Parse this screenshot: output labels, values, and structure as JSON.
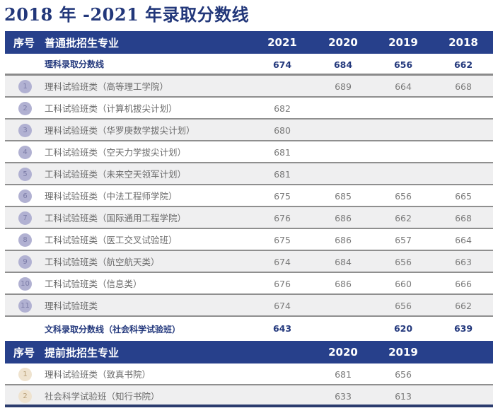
{
  "title": "2018 年 -2021 年录取分数线",
  "colors": {
    "header_bg": "#27408b",
    "title": "#22377a",
    "summary_text": "#24397d",
    "badge_purple": "#b1b1d2",
    "badge_gold": "#efe3cf"
  },
  "regular": {
    "header": {
      "seq": "序号",
      "name": "普通批招生专业",
      "years": [
        "2021",
        "2020",
        "2019",
        "2018"
      ]
    },
    "science_line": {
      "label": "理科录取分数线",
      "scores": [
        "674",
        "684",
        "656",
        "662"
      ]
    },
    "rows": [
      {
        "no": "1",
        "name": "理科试验班类（高等理工学院）",
        "scores": [
          "",
          "689",
          "664",
          "668"
        ]
      },
      {
        "no": "2",
        "name": "工科试验班类（计算机拔尖计划）",
        "scores": [
          "682",
          "",
          "",
          ""
        ]
      },
      {
        "no": "3",
        "name": "理科试验班类（华罗庚数学拔尖计划）",
        "scores": [
          "680",
          "",
          "",
          ""
        ]
      },
      {
        "no": "4",
        "name": "工科试验班类（空天力学拔尖计划）",
        "scores": [
          "681",
          "",
          "",
          ""
        ]
      },
      {
        "no": "5",
        "name": "工科试验班类（未来空天领军计划）",
        "scores": [
          "681",
          "",
          "",
          ""
        ]
      },
      {
        "no": "6",
        "name": "理科试验班类（中法工程师学院）",
        "scores": [
          "675",
          "685",
          "656",
          "665"
        ]
      },
      {
        "no": "7",
        "name": "工科试验班类（国际通用工程学院）",
        "scores": [
          "676",
          "686",
          "662",
          "668"
        ]
      },
      {
        "no": "8",
        "name": "工科试验班类（医工交叉试验班）",
        "scores": [
          "675",
          "686",
          "657",
          "664"
        ]
      },
      {
        "no": "9",
        "name": "工科试验班类（航空航天类）",
        "scores": [
          "674",
          "684",
          "656",
          "663"
        ]
      },
      {
        "no": "10",
        "name": "工科试验班类（信息类）",
        "scores": [
          "676",
          "686",
          "660",
          "666"
        ]
      },
      {
        "no": "11",
        "name": "理科试验班类",
        "scores": [
          "674",
          "",
          "656",
          "662"
        ]
      }
    ],
    "arts_line": {
      "label": "文科录取分数线（社会科学试验班）",
      "scores": [
        "643",
        "",
        "620",
        "639"
      ]
    }
  },
  "early": {
    "header": {
      "seq": "序号",
      "name": "提前批招生专业",
      "years": [
        "2020",
        "2019"
      ]
    },
    "rows": [
      {
        "no": "1",
        "name": "理科试验班类（致真书院）",
        "scores": [
          "681",
          "656"
        ]
      },
      {
        "no": "2",
        "name": "社会科学试验班（知行书院）",
        "scores": [
          "633",
          "613"
        ]
      }
    ]
  }
}
